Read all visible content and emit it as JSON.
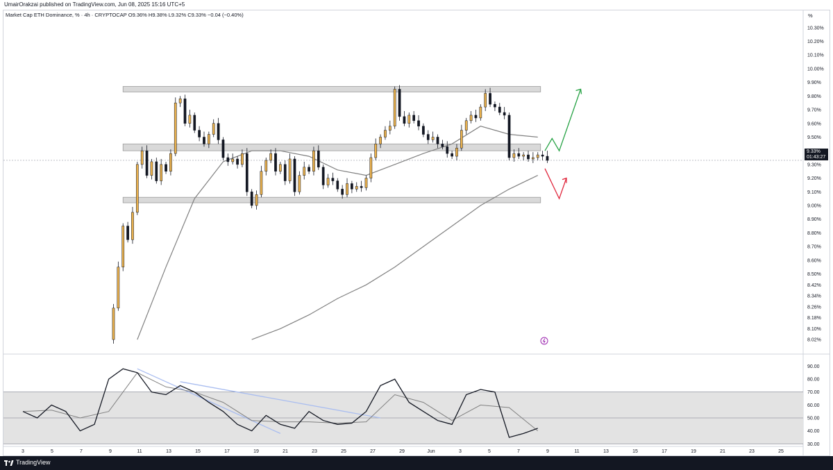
{
  "header": {
    "publisher": "UmairOrakzai published on TradingView.com, Jun 08, 2025 15:16 UTC+5",
    "symbol": "Market Cap ETH Dominance, % · 4h · CRYPTOCAP",
    "ohlc": "O9.36% H9.38% L9.32% C9.33% −0.04 (−0.40%)",
    "unit": "%"
  },
  "price_tag": {
    "price": "9.33%",
    "countdown": "01:43:27"
  },
  "footer": {
    "brand": "TradingView"
  },
  "colors": {
    "bull": "#e8b04d",
    "bear": "#131722",
    "ma": "#808080",
    "zone": "#d9d9d9",
    "up_arrow": "#26a244",
    "down_arrow": "#e0243a",
    "rsi_band": "#e3e3e3",
    "trendline": "#a9bdf0"
  },
  "chart_data": [
    {
      "type": "candlestick",
      "title": "",
      "y_axis_ticks": [
        "10.30%",
        "10.20%",
        "10.10%",
        "10.00%",
        "9.90%",
        "9.80%",
        "9.70%",
        "9.60%",
        "9.50%",
        "9.40%",
        "9.30%",
        "9.20%",
        "9.10%",
        "9.00%",
        "8.90%",
        "8.80%",
        "8.70%",
        "8.60%",
        "8.50%",
        "8.42%",
        "8.34%",
        "8.26%",
        "8.18%",
        "8.10%",
        "8.02%"
      ],
      "ylim": [
        7.98,
        10.36
      ],
      "x_axis_ticks": [
        "3",
        "5",
        "7",
        "9",
        "11",
        "13",
        "15",
        "17",
        "19",
        "21",
        "23",
        "25",
        "27",
        "29",
        "Jun",
        "3",
        "5",
        "7",
        "9",
        "11",
        "13",
        "15",
        "17",
        "19",
        "21",
        "23",
        "25"
      ],
      "x_range": [
        "2025-05-03",
        "2025-06-25"
      ],
      "zones": [
        {
          "name": "resistance",
          "low": 9.83,
          "high": 9.87,
          "from": "2025-05-10",
          "to": "2025-06-08"
        },
        {
          "name": "mid",
          "low": 9.4,
          "high": 9.45,
          "from": "2025-05-10",
          "to": "2025-06-08"
        },
        {
          "name": "support",
          "low": 9.02,
          "high": 9.06,
          "from": "2025-05-10",
          "to": "2025-06-08"
        }
      ],
      "last_price": 9.33,
      "close_path": [
        [
          "2025-05-09T00:00",
          8.02
        ],
        [
          "2025-05-09T08:00",
          8.25
        ],
        [
          "2025-05-09T16:00",
          8.55
        ],
        [
          "2025-05-10T00:00",
          8.85
        ],
        [
          "2025-05-10T08:00",
          8.75
        ],
        [
          "2025-05-10T16:00",
          8.95
        ],
        [
          "2025-05-11T00:00",
          9.3
        ],
        [
          "2025-05-11T08:00",
          9.4
        ],
        [
          "2025-05-11T16:00",
          9.22
        ],
        [
          "2025-05-12T00:00",
          9.32
        ],
        [
          "2025-05-12T08:00",
          9.18
        ],
        [
          "2025-05-12T16:00",
          9.3
        ],
        [
          "2025-05-13T00:00",
          9.25
        ],
        [
          "2025-05-13T08:00",
          9.38
        ],
        [
          "2025-05-13T16:00",
          9.75
        ],
        [
          "2025-05-14T00:00",
          9.78
        ],
        [
          "2025-05-14T08:00",
          9.6
        ],
        [
          "2025-05-14T16:00",
          9.66
        ],
        [
          "2025-05-15T00:00",
          9.55
        ],
        [
          "2025-05-15T08:00",
          9.5
        ],
        [
          "2025-05-15T16:00",
          9.45
        ],
        [
          "2025-05-16T00:00",
          9.52
        ],
        [
          "2025-05-16T08:00",
          9.6
        ],
        [
          "2025-05-16T16:00",
          9.48
        ],
        [
          "2025-05-17T00:00",
          9.35
        ],
        [
          "2025-05-17T08:00",
          9.32
        ],
        [
          "2025-05-17T16:00",
          9.34
        ],
        [
          "2025-05-18T00:00",
          9.3
        ],
        [
          "2025-05-18T08:00",
          9.38
        ],
        [
          "2025-05-18T16:00",
          9.1
        ],
        [
          "2025-05-19T00:00",
          9.0
        ],
        [
          "2025-05-19T08:00",
          9.08
        ],
        [
          "2025-05-19T16:00",
          9.25
        ],
        [
          "2025-05-20T00:00",
          9.33
        ],
        [
          "2025-05-20T08:00",
          9.38
        ],
        [
          "2025-05-20T16:00",
          9.25
        ],
        [
          "2025-05-21T00:00",
          9.3
        ],
        [
          "2025-05-21T08:00",
          9.18
        ],
        [
          "2025-05-21T16:00",
          9.34
        ],
        [
          "2025-05-22T00:00",
          9.1
        ],
        [
          "2025-05-22T08:00",
          9.22
        ],
        [
          "2025-05-22T16:00",
          9.28
        ],
        [
          "2025-05-23T00:00",
          9.25
        ],
        [
          "2025-05-23T08:00",
          9.4
        ],
        [
          "2025-05-23T16:00",
          9.28
        ],
        [
          "2025-05-24T00:00",
          9.15
        ],
        [
          "2025-05-24T08:00",
          9.2
        ],
        [
          "2025-05-24T16:00",
          9.18
        ],
        [
          "2025-05-25T00:00",
          9.12
        ],
        [
          "2025-05-25T08:00",
          9.08
        ],
        [
          "2025-05-25T16:00",
          9.16
        ],
        [
          "2025-05-26T00:00",
          9.12
        ],
        [
          "2025-05-26T08:00",
          9.14
        ],
        [
          "2025-05-26T16:00",
          9.13
        ],
        [
          "2025-05-27T00:00",
          9.2
        ],
        [
          "2025-05-27T08:00",
          9.35
        ],
        [
          "2025-05-27T16:00",
          9.45
        ],
        [
          "2025-05-28T00:00",
          9.5
        ],
        [
          "2025-05-28T08:00",
          9.55
        ],
        [
          "2025-05-28T16:00",
          9.58
        ],
        [
          "2025-05-29T00:00",
          9.85
        ],
        [
          "2025-05-29T08:00",
          9.65
        ],
        [
          "2025-05-29T16:00",
          9.6
        ],
        [
          "2025-05-30T00:00",
          9.66
        ],
        [
          "2025-05-30T08:00",
          9.62
        ],
        [
          "2025-05-30T16:00",
          9.58
        ],
        [
          "2025-05-31T00:00",
          9.52
        ],
        [
          "2025-05-31T08:00",
          9.48
        ],
        [
          "2025-05-31T16:00",
          9.5
        ],
        [
          "2025-06-01T00:00",
          9.45
        ],
        [
          "2025-06-01T08:00",
          9.43
        ],
        [
          "2025-06-01T16:00",
          9.38
        ],
        [
          "2025-06-02T00:00",
          9.36
        ],
        [
          "2025-06-02T08:00",
          9.42
        ],
        [
          "2025-06-02T16:00",
          9.55
        ],
        [
          "2025-06-03T00:00",
          9.62
        ],
        [
          "2025-06-03T08:00",
          9.66
        ],
        [
          "2025-06-03T16:00",
          9.64
        ],
        [
          "2025-06-04T00:00",
          9.72
        ],
        [
          "2025-06-04T08:00",
          9.82
        ],
        [
          "2025-06-04T16:00",
          9.74
        ],
        [
          "2025-06-05T00:00",
          9.72
        ],
        [
          "2025-06-05T08:00",
          9.68
        ],
        [
          "2025-06-05T16:00",
          9.66
        ],
        [
          "2025-06-06T00:00",
          9.35
        ],
        [
          "2025-06-06T08:00",
          9.38
        ],
        [
          "2025-06-06T16:00",
          9.36
        ],
        [
          "2025-06-07T00:00",
          9.37
        ],
        [
          "2025-06-07T08:00",
          9.34
        ],
        [
          "2025-06-07T16:00",
          9.35
        ],
        [
          "2025-06-08T00:00",
          9.37
        ],
        [
          "2025-06-08T08:00",
          9.36
        ],
        [
          "2025-06-08T16:00",
          9.33
        ]
      ],
      "ma_short": [
        [
          "2025-05-11",
          8.02
        ],
        [
          "2025-05-13",
          8.55
        ],
        [
          "2025-05-15",
          9.05
        ],
        [
          "2025-05-17",
          9.32
        ],
        [
          "2025-05-19",
          9.4
        ],
        [
          "2025-05-21",
          9.4
        ],
        [
          "2025-05-23",
          9.36
        ],
        [
          "2025-05-25",
          9.26
        ],
        [
          "2025-05-27",
          9.22
        ],
        [
          "2025-05-29",
          9.3
        ],
        [
          "2025-05-31",
          9.38
        ],
        [
          "2025-06-02",
          9.45
        ],
        [
          "2025-06-04",
          9.58
        ],
        [
          "2025-06-06",
          9.52
        ],
        [
          "2025-06-08",
          9.5
        ]
      ],
      "ma_long": [
        [
          "2025-05-19",
          8.02
        ],
        [
          "2025-05-21",
          8.1
        ],
        [
          "2025-05-23",
          8.2
        ],
        [
          "2025-05-25",
          8.32
        ],
        [
          "2025-05-27",
          8.42
        ],
        [
          "2025-05-29",
          8.55
        ],
        [
          "2025-05-31",
          8.7
        ],
        [
          "2025-06-02",
          8.85
        ],
        [
          "2025-06-04",
          9.0
        ],
        [
          "2025-06-06",
          9.12
        ],
        [
          "2025-06-08",
          9.22
        ]
      ],
      "projection_up": [
        [
          "2025-06-08T12:00",
          9.4
        ],
        [
          "2025-06-09",
          9.49
        ],
        [
          "2025-06-09T12:00",
          9.4
        ],
        [
          "2025-06-11",
          9.85
        ]
      ],
      "projection_down": [
        [
          "2025-06-08T12:00",
          9.27
        ],
        [
          "2025-06-09T12:00",
          9.05
        ],
        [
          "2025-06-10",
          9.2
        ]
      ]
    },
    {
      "type": "line",
      "title": "",
      "y_axis_ticks": [
        "90.00",
        "80.00",
        "70.00",
        "60.00",
        "50.00",
        "40.00",
        "30.00"
      ],
      "ylim": [
        28,
        94
      ],
      "band": [
        30,
        70
      ],
      "midline": 50,
      "series": [
        {
          "name": "",
          "values": [
            [
              "2025-05-03",
              55
            ],
            [
              "2025-05-04",
              50
            ],
            [
              "2025-05-05",
              60
            ],
            [
              "2025-05-06",
              55
            ],
            [
              "2025-05-07",
              40
            ],
            [
              "2025-05-08",
              45
            ],
            [
              "2025-05-09",
              80
            ],
            [
              "2025-05-10",
              88
            ],
            [
              "2025-05-11",
              85
            ],
            [
              "2025-05-12",
              70
            ],
            [
              "2025-05-13",
              68
            ],
            [
              "2025-05-14",
              75
            ],
            [
              "2025-05-15",
              70
            ],
            [
              "2025-05-16",
              62
            ],
            [
              "2025-05-17",
              55
            ],
            [
              "2025-05-18",
              45
            ],
            [
              "2025-05-19",
              40
            ],
            [
              "2025-05-20",
              52
            ],
            [
              "2025-05-21",
              45
            ],
            [
              "2025-05-22",
              42
            ],
            [
              "2025-05-23",
              55
            ],
            [
              "2025-05-24",
              48
            ],
            [
              "2025-05-25",
              45
            ],
            [
              "2025-05-26",
              46
            ],
            [
              "2025-05-27",
              55
            ],
            [
              "2025-05-28",
              75
            ],
            [
              "2025-05-29",
              80
            ],
            [
              "2025-05-30",
              62
            ],
            [
              "2025-05-31",
              55
            ],
            [
              "2025-06-01",
              48
            ],
            [
              "2025-06-02",
              45
            ],
            [
              "2025-06-03",
              68
            ],
            [
              "2025-06-04",
              72
            ],
            [
              "2025-06-05",
              70
            ],
            [
              "2025-06-06",
              35
            ],
            [
              "2025-06-07",
              38
            ],
            [
              "2025-06-08",
              42
            ]
          ]
        },
        {
          "name": "",
          "values": [
            [
              "2025-05-03",
              55
            ],
            [
              "2025-05-05",
              56
            ],
            [
              "2025-05-07",
              50
            ],
            [
              "2025-05-09",
              55
            ],
            [
              "2025-05-11",
              85
            ],
            [
              "2025-05-13",
              74
            ],
            [
              "2025-05-15",
              70
            ],
            [
              "2025-05-17",
              62
            ],
            [
              "2025-05-19",
              48
            ],
            [
              "2025-05-21",
              47
            ],
            [
              "2025-05-23",
              47
            ],
            [
              "2025-05-25",
              46
            ],
            [
              "2025-05-27",
              47
            ],
            [
              "2025-05-29",
              68
            ],
            [
              "2025-05-31",
              62
            ],
            [
              "2025-06-02",
              48
            ],
            [
              "2025-06-04",
              60
            ],
            [
              "2025-06-06",
              58
            ],
            [
              "2025-06-08",
              40
            ]
          ]
        }
      ],
      "trendlines": [
        [
          [
            "2025-05-11",
            88
          ],
          [
            "2025-05-21",
            38
          ]
        ],
        [
          [
            "2025-05-14",
            78
          ],
          [
            "2025-05-28",
            50
          ]
        ]
      ]
    }
  ]
}
